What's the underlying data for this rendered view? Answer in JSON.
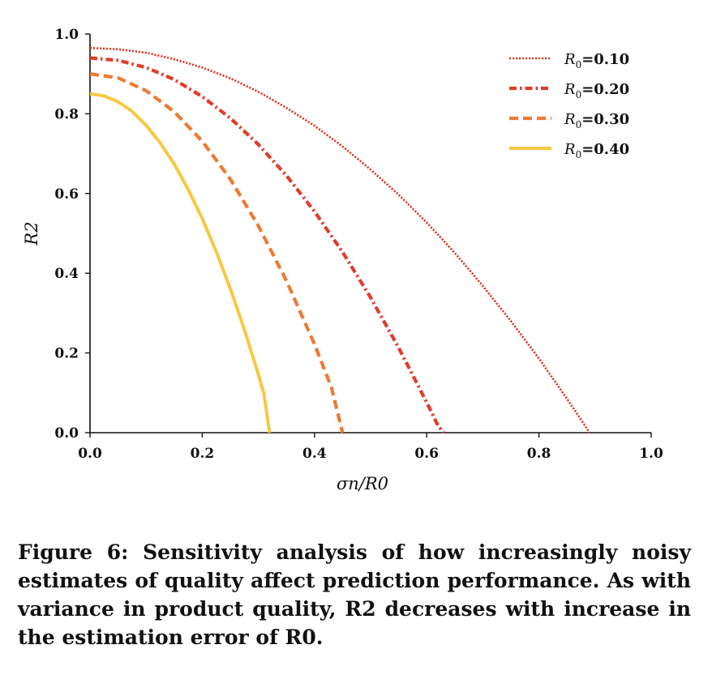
{
  "chart_data": {
    "type": "line",
    "xlabel": "σn/R0",
    "ylabel": "R2",
    "xlim": [
      0.0,
      1.0
    ],
    "ylim": [
      0.0,
      1.0
    ],
    "xticks": [
      "0.0",
      "0.2",
      "0.4",
      "0.6",
      "0.8",
      "1.0"
    ],
    "yticks": [
      "0.0",
      "0.2",
      "0.4",
      "0.6",
      "0.8",
      "1.0"
    ],
    "grid": false,
    "legend_position": "top-right",
    "series": [
      {
        "name": "R0 =0.10",
        "legend_prefix": "R",
        "legend_sub": "0",
        "legend_value": "=0.10",
        "color": "#d93a2b",
        "style": "dotted",
        "x": [
          0.0,
          0.05,
          0.1,
          0.15,
          0.2,
          0.25,
          0.3,
          0.35,
          0.4,
          0.45,
          0.5,
          0.55,
          0.6,
          0.65,
          0.7,
          0.75,
          0.8,
          0.85,
          0.88,
          0.89
        ],
        "y": [
          0.965,
          0.962,
          0.953,
          0.937,
          0.916,
          0.889,
          0.855,
          0.815,
          0.77,
          0.718,
          0.66,
          0.597,
          0.527,
          0.451,
          0.368,
          0.28,
          0.186,
          0.085,
          0.022,
          0.0
        ]
      },
      {
        "name": "R0 =0.20",
        "legend_prefix": "R",
        "legend_sub": "0",
        "legend_value": "=0.20",
        "color": "#e03c2c",
        "style": "dashdot",
        "x": [
          0.0,
          0.05,
          0.1,
          0.15,
          0.2,
          0.25,
          0.3,
          0.35,
          0.4,
          0.45,
          0.5,
          0.55,
          0.6,
          0.62,
          0.63
        ],
        "y": [
          0.94,
          0.934,
          0.916,
          0.886,
          0.843,
          0.789,
          0.723,
          0.645,
          0.555,
          0.453,
          0.339,
          0.213,
          0.076,
          0.018,
          0.0
        ]
      },
      {
        "name": "R0 =0.30",
        "legend_prefix": "R",
        "legend_sub": "0",
        "legend_value": "=0.30",
        "color": "#ee7a33",
        "style": "dashed",
        "x": [
          0.0,
          0.05,
          0.1,
          0.15,
          0.2,
          0.25,
          0.3,
          0.35,
          0.4,
          0.43,
          0.45
        ],
        "y": [
          0.9,
          0.89,
          0.858,
          0.805,
          0.731,
          0.636,
          0.519,
          0.381,
          0.222,
          0.114,
          0.0
        ]
      },
      {
        "name": "R0 =0.40",
        "legend_prefix": "R",
        "legend_sub": "0",
        "legend_value": "=0.40",
        "color": "#f7c842",
        "style": "solid",
        "x": [
          0.0,
          0.025,
          0.05,
          0.075,
          0.1,
          0.125,
          0.15,
          0.175,
          0.2,
          0.225,
          0.25,
          0.275,
          0.3,
          0.31,
          0.32
        ],
        "y": [
          0.85,
          0.845,
          0.83,
          0.806,
          0.771,
          0.727,
          0.674,
          0.61,
          0.537,
          0.454,
          0.361,
          0.259,
          0.146,
          0.097,
          0.0
        ]
      }
    ]
  },
  "caption": "Figure 6: Sensitivity analysis of how increasingly noisy estimates of quality affect prediction performance. As with variance in product quality, R2 decreases with increase in the estimation error of R0."
}
